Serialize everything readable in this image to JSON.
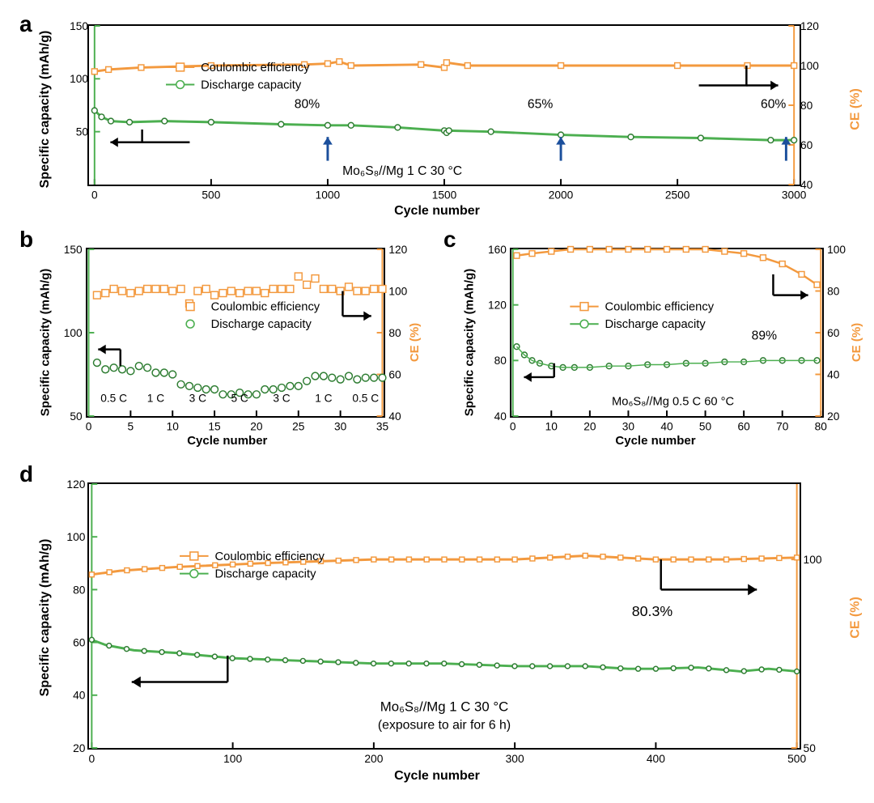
{
  "colors": {
    "orange": "#f3993e",
    "green": "#4caf50",
    "green_dark": "#2e7d32",
    "blue_arrow": "#1b4f9c",
    "black": "#000000",
    "right_axis": "#f3993e",
    "left_axis": "#4caf50"
  },
  "panel_labels": {
    "a": "a",
    "b": "b",
    "c": "c",
    "d": "d"
  },
  "panel_a": {
    "type": "line+scatter dual-axis",
    "x_label": "Cycle number",
    "y_left_label": "Specific capacity (mAh/g)",
    "y_right_label": "CE (%)",
    "xlim": [
      0,
      3000
    ],
    "xtick_step": 500,
    "ylim_left": [
      0,
      150
    ],
    "ytick_left": [
      50,
      100,
      150
    ],
    "ylim_right": [
      40,
      120
    ],
    "ytick_right": [
      40,
      60,
      80,
      100,
      120
    ],
    "legend": [
      {
        "label": "Coulombic efficiency",
        "color_key": "orange",
        "marker": "square"
      },
      {
        "label": "Discharge capacity",
        "color_key": "green",
        "marker": "circle"
      }
    ],
    "caption": "Mo₆S₈//Mg 1 C 30 °C",
    "retention_labels": [
      {
        "text": "80%",
        "x": 1000,
        "y_right_guide": 65
      },
      {
        "text": "65%",
        "x": 2000,
        "y_right_guide": 58
      },
      {
        "text": "60%",
        "x": 3000,
        "y_right_guide": 55
      }
    ],
    "ce_series": {
      "color_key": "orange",
      "marker": "square",
      "points_xy_right": [
        [
          0,
          97
        ],
        [
          60,
          98
        ],
        [
          200,
          99
        ],
        [
          500,
          100
        ],
        [
          900,
          100.5
        ],
        [
          1000,
          101
        ],
        [
          1050,
          102
        ],
        [
          1100,
          100
        ],
        [
          1400,
          100.5
        ],
        [
          1500,
          99
        ],
        [
          1510,
          101.5
        ],
        [
          1600,
          100
        ],
        [
          2000,
          100
        ],
        [
          2500,
          100
        ],
        [
          2800,
          100
        ],
        [
          3000,
          100
        ]
      ]
    },
    "dc_series": {
      "color_key": "green",
      "marker": "circle",
      "points_xy_left": [
        [
          0,
          70
        ],
        [
          30,
          64
        ],
        [
          70,
          60
        ],
        [
          150,
          59
        ],
        [
          300,
          60
        ],
        [
          500,
          59
        ],
        [
          800,
          57
        ],
        [
          1000,
          56
        ],
        [
          1100,
          56
        ],
        [
          1300,
          54
        ],
        [
          1500,
          51
        ],
        [
          1510,
          49
        ],
        [
          1520,
          51
        ],
        [
          1700,
          50
        ],
        [
          2000,
          47
        ],
        [
          2300,
          45
        ],
        [
          2600,
          44
        ],
        [
          2900,
          42
        ],
        [
          3000,
          42
        ]
      ]
    }
  },
  "panel_b": {
    "type": "scatter dual-axis rate-capability",
    "x_label": "Cycle number",
    "y_left_label": "Specific capacity (mAh/g)",
    "y_right_label": "CE (%)",
    "xlim": [
      0,
      35
    ],
    "xtick_step": 5,
    "ylim_left": [
      50,
      150
    ],
    "ytick_left": [
      50,
      100,
      150
    ],
    "ylim_right": [
      40,
      120
    ],
    "ytick_right": [
      40,
      60,
      80,
      100,
      120
    ],
    "legend": [
      {
        "label": "Coulombic efficiency",
        "color_key": "orange",
        "marker": "square"
      },
      {
        "label": "Discharge capacity",
        "color_key": "green",
        "marker": "circle"
      }
    ],
    "rate_labels": [
      {
        "text": "0.5 C",
        "x": 3
      },
      {
        "text": "1 C",
        "x": 8
      },
      {
        "text": "3 C",
        "x": 13
      },
      {
        "text": "5 C",
        "x": 18
      },
      {
        "text": "3 C",
        "x": 23
      },
      {
        "text": "1 C",
        "x": 28
      },
      {
        "text": "0.5 C",
        "x": 33
      }
    ],
    "ce_points_xy_right": [
      [
        1,
        98
      ],
      [
        2,
        99
      ],
      [
        3,
        101
      ],
      [
        4,
        100
      ],
      [
        5,
        99
      ],
      [
        6,
        100
      ],
      [
        7,
        101
      ],
      [
        8,
        101
      ],
      [
        9,
        101
      ],
      [
        10,
        100
      ],
      [
        11,
        101
      ],
      [
        12,
        94
      ],
      [
        13,
        100
      ],
      [
        14,
        101
      ],
      [
        15,
        98
      ],
      [
        16,
        99
      ],
      [
        17,
        100
      ],
      [
        18,
        99
      ],
      [
        19,
        100
      ],
      [
        20,
        100
      ],
      [
        21,
        99
      ],
      [
        22,
        101
      ],
      [
        23,
        101
      ],
      [
        24,
        101
      ],
      [
        25,
        107
      ],
      [
        26,
        103
      ],
      [
        27,
        106
      ],
      [
        28,
        101
      ],
      [
        29,
        101
      ],
      [
        30,
        100
      ],
      [
        31,
        102
      ],
      [
        32,
        100
      ],
      [
        33,
        100
      ],
      [
        34,
        101
      ],
      [
        35,
        101
      ]
    ],
    "dc_points_xy_left": [
      [
        1,
        82
      ],
      [
        2,
        78
      ],
      [
        3,
        79
      ],
      [
        4,
        78
      ],
      [
        5,
        77
      ],
      [
        6,
        80
      ],
      [
        7,
        79
      ],
      [
        8,
        76
      ],
      [
        9,
        76
      ],
      [
        10,
        75
      ],
      [
        11,
        69
      ],
      [
        12,
        68
      ],
      [
        13,
        67
      ],
      [
        14,
        66
      ],
      [
        15,
        66
      ],
      [
        16,
        63
      ],
      [
        17,
        63
      ],
      [
        18,
        64
      ],
      [
        19,
        63
      ],
      [
        20,
        63
      ],
      [
        21,
        66
      ],
      [
        22,
        66
      ],
      [
        23,
        67
      ],
      [
        24,
        68
      ],
      [
        25,
        68
      ],
      [
        26,
        71
      ],
      [
        27,
        74
      ],
      [
        28,
        74
      ],
      [
        29,
        73
      ],
      [
        30,
        72
      ],
      [
        31,
        74
      ],
      [
        32,
        72
      ],
      [
        33,
        73
      ],
      [
        34,
        73
      ],
      [
        35,
        73
      ]
    ]
  },
  "panel_c": {
    "type": "scatter dual-axis",
    "x_label": "Cycle number",
    "y_left_label": "Specific capacity (mAh/g)",
    "y_right_label": "CE (%)",
    "xlim": [
      0,
      80
    ],
    "xtick_step": 10,
    "ylim_left": [
      40,
      160
    ],
    "ytick_left": [
      40,
      80,
      120,
      160
    ],
    "ylim_right": [
      20,
      100
    ],
    "ytick_right": [
      20,
      40,
      60,
      80,
      100
    ],
    "legend": [
      {
        "label": "Coulombic efficiency",
        "color_key": "orange",
        "marker": "square"
      },
      {
        "label": "Discharge capacity",
        "color_key": "green",
        "marker": "circle"
      }
    ],
    "caption": "Mo₆S₈//Mg 0.5 C 60 °C",
    "retention_label": {
      "text": "89%",
      "x": 62
    },
    "ce_points_xy_right": [
      [
        1,
        97
      ],
      [
        5,
        98
      ],
      [
        10,
        99
      ],
      [
        15,
        100
      ],
      [
        20,
        100
      ],
      [
        25,
        100
      ],
      [
        30,
        100
      ],
      [
        35,
        100
      ],
      [
        40,
        100
      ],
      [
        45,
        100
      ],
      [
        50,
        100
      ],
      [
        55,
        99
      ],
      [
        60,
        98
      ],
      [
        65,
        96
      ],
      [
        70,
        93
      ],
      [
        75,
        88
      ],
      [
        79,
        83
      ]
    ],
    "dc_points_xy_left": [
      [
        1,
        90
      ],
      [
        3,
        84
      ],
      [
        5,
        80
      ],
      [
        7,
        78
      ],
      [
        10,
        76
      ],
      [
        13,
        75
      ],
      [
        16,
        75
      ],
      [
        20,
        75
      ],
      [
        25,
        76
      ],
      [
        30,
        76
      ],
      [
        35,
        77
      ],
      [
        40,
        77
      ],
      [
        45,
        78
      ],
      [
        50,
        78
      ],
      [
        55,
        79
      ],
      [
        60,
        79
      ],
      [
        65,
        80
      ],
      [
        70,
        80
      ],
      [
        75,
        80
      ],
      [
        79,
        80
      ]
    ]
  },
  "panel_d": {
    "type": "line+scatter dual-axis",
    "x_label": "Cycle number",
    "y_left_label": "Specific capacity (mAh/g)",
    "y_right_label": "CE (%)",
    "xlim": [
      0,
      500
    ],
    "xtick_step": 100,
    "ylim_left": [
      20,
      120
    ],
    "ytick_left": [
      20,
      40,
      60,
      80,
      100,
      120
    ],
    "ylim_right": [
      50,
      120
    ],
    "ytick_right": [
      50,
      100
    ],
    "legend": [
      {
        "label": "Coulombic efficiency",
        "color_key": "orange",
        "marker": "square"
      },
      {
        "label": "Discharge capacity",
        "color_key": "green",
        "marker": "circle"
      }
    ],
    "caption_line1": "Mo₆S₈//Mg 1 C 30 °C",
    "caption_line2": "(exposure to air for 6 h)",
    "retention_label": {
      "text": "80.3%",
      "x": 400
    },
    "ce_series_xy_right": [
      [
        0,
        96
      ],
      [
        20,
        97
      ],
      [
        60,
        98
      ],
      [
        120,
        99
      ],
      [
        200,
        100
      ],
      [
        300,
        100
      ],
      [
        350,
        101
      ],
      [
        400,
        100
      ],
      [
        450,
        100
      ],
      [
        500,
        100.5
      ]
    ],
    "dc_series_xy_left": [
      [
        0,
        61
      ],
      [
        10,
        59
      ],
      [
        30,
        57
      ],
      [
        60,
        56
      ],
      [
        100,
        54
      ],
      [
        150,
        53
      ],
      [
        200,
        52
      ],
      [
        250,
        52
      ],
      [
        300,
        51
      ],
      [
        350,
        51
      ],
      [
        380,
        50
      ],
      [
        400,
        50
      ],
      [
        430,
        50.5
      ],
      [
        460,
        49
      ],
      [
        480,
        50
      ],
      [
        500,
        49
      ]
    ]
  }
}
